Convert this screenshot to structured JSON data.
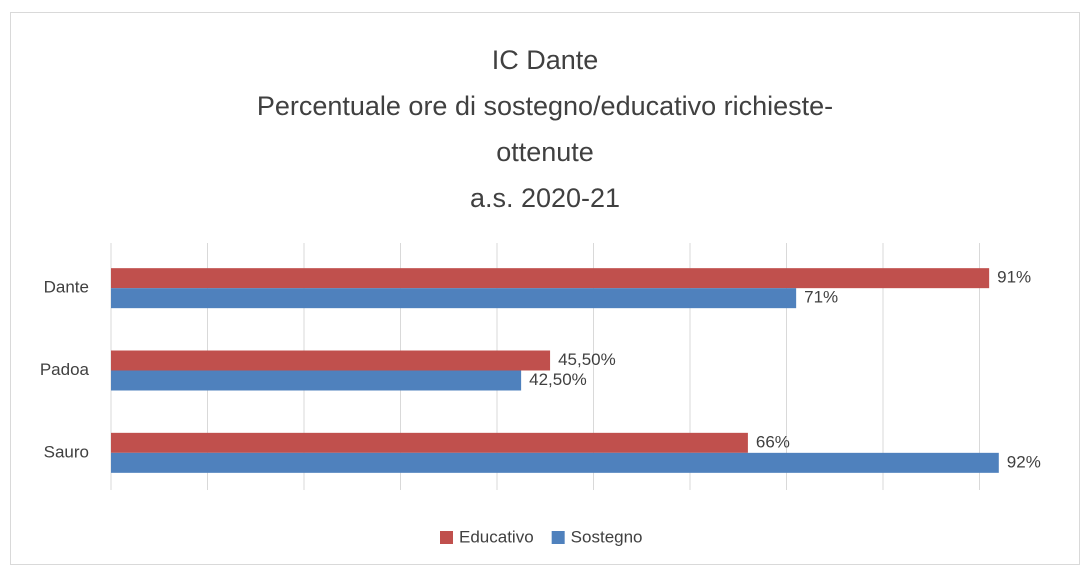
{
  "chart_data": {
    "type": "barh",
    "title": [
      "IC Dante",
      "Percentuale ore di sostegno/educativo richieste-",
      "ottenute",
      "a.s. 2020-21"
    ],
    "categories": [
      "Dante",
      "Padoa",
      "Sauro"
    ],
    "series": [
      {
        "name": "Educativo",
        "color": "#c0504d",
        "values": [
          91,
          45.5,
          66
        ],
        "value_labels": [
          "91%",
          "45,50%",
          "66%"
        ]
      },
      {
        "name": "Sostegno",
        "color": "#4f81bd",
        "values": [
          71,
          42.5,
          92
        ],
        "value_labels": [
          "71%",
          "42,50%",
          "92%"
        ]
      }
    ],
    "xlim": [
      0,
      100
    ],
    "xticks": [
      0,
      10,
      20,
      30,
      40,
      50,
      60,
      70,
      80,
      90
    ],
    "grid": true,
    "legend": "bottom"
  }
}
